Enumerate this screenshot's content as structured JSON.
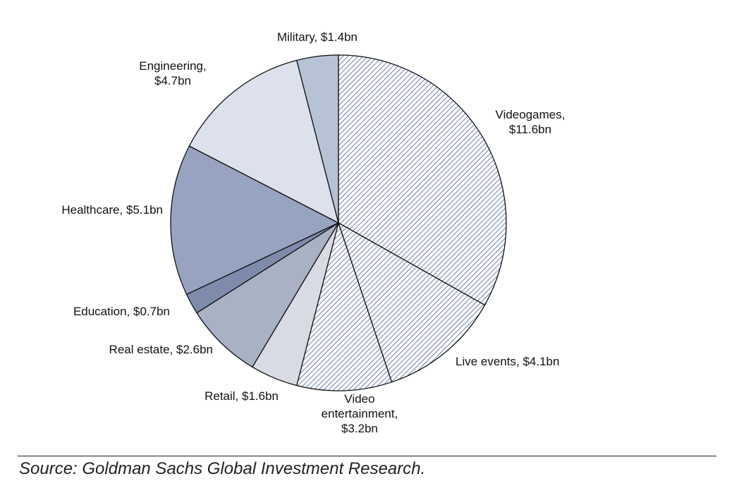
{
  "chart_data": {
    "type": "pie",
    "start_angle_deg": 90,
    "direction": "clockwise",
    "slices": [
      {
        "name": "Videogames",
        "value": 11.6,
        "label": "Videogames,\n$11.6bn",
        "fill": "hatch"
      },
      {
        "name": "Live events",
        "value": 4.1,
        "label": "Live events, $4.1bn",
        "fill": "hatch"
      },
      {
        "name": "Video entertainment",
        "value": 3.2,
        "label": "Video\nentertainment,\n$3.2bn",
        "fill": "hatch"
      },
      {
        "name": "Retail",
        "value": 1.6,
        "label": "Retail, $1.6bn",
        "fill": "#d8dbe3"
      },
      {
        "name": "Real estate",
        "value": 2.6,
        "label": "Real estate, $2.6bn",
        "fill": "#a9b1c4"
      },
      {
        "name": "Education",
        "value": 0.7,
        "label": "Education, $0.7bn",
        "fill": "#7e8bab"
      },
      {
        "name": "Healthcare",
        "value": 5.1,
        "label": "Healthcare, $5.1bn",
        "fill": "#97a3c0"
      },
      {
        "name": "Engineering",
        "value": 4.7,
        "label": "Engineering,\n$4.7bn",
        "fill": "#dde1ec"
      },
      {
        "name": "Military",
        "value": 1.4,
        "label": "Military, $1.4bn",
        "fill": "#b8c2d6"
      }
    ],
    "hatch_colors": {
      "line": "#4a5f9e",
      "background": "#ffffff"
    }
  },
  "source": "Source: Goldman Sachs Global Investment Research."
}
